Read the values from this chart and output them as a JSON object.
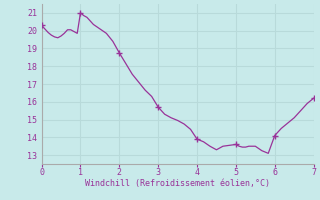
{
  "xlabel": "Windchill (Refroidissement éolien,°C)",
  "bg_color": "#c8eaea",
  "line_color": "#993399",
  "marker_color": "#993399",
  "grid_color": "#b8dada",
  "spine_color": "#aaaaaa",
  "xlim": [
    0,
    7
  ],
  "ylim": [
    12.5,
    21.5
  ],
  "yticks": [
    13,
    14,
    15,
    16,
    17,
    18,
    19,
    20,
    21
  ],
  "xticks": [
    0,
    1,
    2,
    3,
    4,
    5,
    6,
    7
  ],
  "x": [
    0.0,
    0.083,
    0.167,
    0.25,
    0.333,
    0.417,
    0.5,
    0.583,
    0.667,
    0.75,
    0.833,
    0.917,
    1.0,
    1.083,
    1.167,
    1.25,
    1.333,
    1.5,
    1.667,
    1.833,
    2.0,
    2.167,
    2.333,
    2.5,
    2.667,
    2.833,
    3.0,
    3.167,
    3.333,
    3.5,
    3.667,
    3.833,
    4.0,
    4.167,
    4.333,
    4.5,
    4.583,
    4.667,
    4.833,
    5.0,
    5.083,
    5.167,
    5.25,
    5.333,
    5.5,
    5.667,
    5.833,
    6.0,
    6.167,
    6.333,
    6.5,
    6.667,
    6.833,
    7.0
  ],
  "y": [
    20.3,
    20.1,
    19.9,
    19.75,
    19.65,
    19.6,
    19.7,
    19.85,
    20.05,
    20.05,
    19.95,
    19.85,
    21.0,
    20.85,
    20.75,
    20.55,
    20.35,
    20.1,
    19.85,
    19.4,
    18.75,
    18.15,
    17.55,
    17.1,
    16.65,
    16.3,
    15.7,
    15.3,
    15.1,
    14.95,
    14.75,
    14.45,
    13.9,
    13.75,
    13.5,
    13.3,
    13.4,
    13.5,
    13.55,
    13.6,
    13.5,
    13.45,
    13.45,
    13.5,
    13.5,
    13.25,
    13.1,
    14.1,
    14.5,
    14.8,
    15.1,
    15.5,
    15.9,
    16.2
  ],
  "marker_x": [
    0.0,
    1.0,
    2.0,
    3.0,
    4.0,
    5.0,
    6.0,
    7.0
  ],
  "marker_y": [
    20.3,
    21.0,
    18.75,
    15.7,
    13.9,
    13.6,
    14.1,
    16.2
  ]
}
